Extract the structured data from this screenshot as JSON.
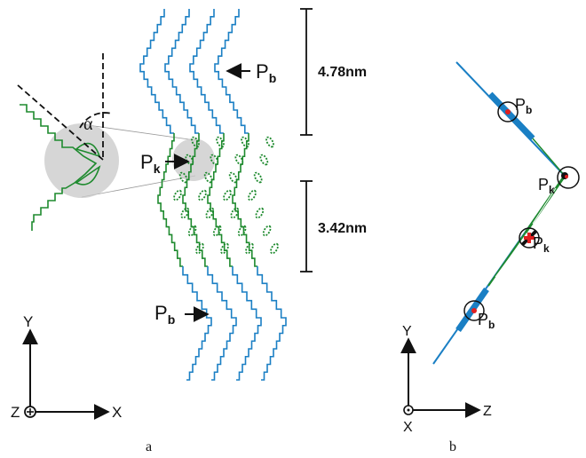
{
  "panel_a": {
    "caption": "a",
    "angle_symbol": "α",
    "pk_label": {
      "main": "P",
      "sub": "k"
    },
    "pb_top_label": {
      "main": "P",
      "sub": "b"
    },
    "pb_bottom_label": {
      "main": "P",
      "sub": "b"
    },
    "dimension_top": "4.78nm",
    "dimension_bottom": "3.42nm",
    "axes": {
      "y": "Y",
      "x": "X",
      "z": "Z"
    }
  },
  "panel_b": {
    "caption": "b",
    "pb_top_label": {
      "main": "P",
      "sub": "b"
    },
    "pk_top_label": {
      "main": "P",
      "sub": "k"
    },
    "pk_bottom_label": {
      "main": "P",
      "sub": "k"
    },
    "pb_bottom_label": {
      "main": "P",
      "sub": "b"
    },
    "axes": {
      "y": "Y",
      "z": "Z",
      "x": "X"
    }
  },
  "colors": {
    "blue_strand": "#1a7fc4",
    "green_strand": "#1e8a2e",
    "marker_red": "#e02020",
    "shading": "#c8c8c8"
  }
}
